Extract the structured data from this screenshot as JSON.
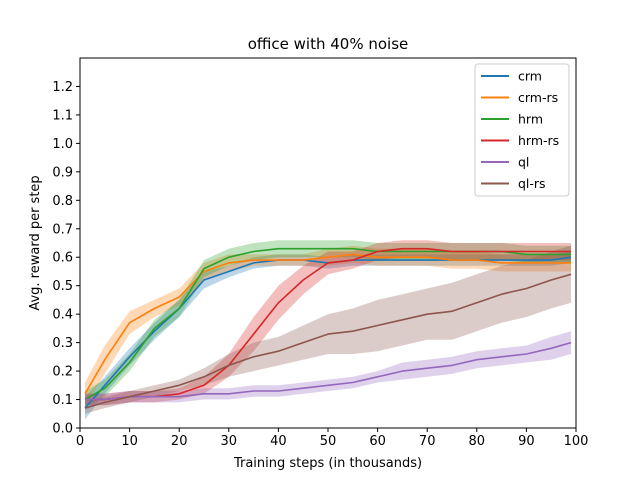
{
  "chart_data": {
    "type": "line",
    "title": "office with 40% noise",
    "xlabel": "Training steps (in thousands)",
    "ylabel": "Avg. reward per step",
    "xlim": [
      0,
      100
    ],
    "ylim": [
      0,
      1.3
    ],
    "xticks": [
      0,
      10,
      20,
      30,
      40,
      50,
      60,
      70,
      80,
      90,
      100
    ],
    "yticks": [
      0.0,
      0.1,
      0.2,
      0.3,
      0.4,
      0.5,
      0.6,
      0.7,
      0.8,
      0.9,
      1.0,
      1.1,
      1.2
    ],
    "xtick_labels": [
      "0",
      "10",
      "20",
      "30",
      "40",
      "50",
      "60",
      "70",
      "80",
      "90",
      "100"
    ],
    "ytick_labels": [
      "0.0",
      "0.1",
      "0.2",
      "0.3",
      "0.4",
      "0.5",
      "0.6",
      "0.7",
      "0.8",
      "0.9",
      "1.0",
      "1.1",
      "1.2"
    ],
    "grid": false,
    "legend_position": "top-right",
    "x": [
      1,
      5,
      10,
      15,
      20,
      25,
      30,
      35,
      40,
      45,
      50,
      55,
      60,
      65,
      70,
      75,
      80,
      85,
      90,
      95,
      99
    ],
    "series": [
      {
        "name": "crm",
        "color": "#1f77b4",
        "values": [
          0.07,
          0.15,
          0.25,
          0.34,
          0.42,
          0.52,
          0.55,
          0.58,
          0.59,
          0.59,
          0.58,
          0.59,
          0.59,
          0.59,
          0.59,
          0.59,
          0.59,
          0.59,
          0.59,
          0.59,
          0.6
        ],
        "band": [
          0.04,
          0.03,
          0.03,
          0.03,
          0.03,
          0.03,
          0.02,
          0.02,
          0.02,
          0.02,
          0.02,
          0.02,
          0.02,
          0.02,
          0.02,
          0.02,
          0.02,
          0.02,
          0.02,
          0.02,
          0.02
        ]
      },
      {
        "name": "crm-rs",
        "color": "#ff7f0e",
        "values": [
          0.12,
          0.24,
          0.37,
          0.42,
          0.46,
          0.55,
          0.58,
          0.59,
          0.59,
          0.59,
          0.6,
          0.61,
          0.6,
          0.6,
          0.6,
          0.59,
          0.59,
          0.58,
          0.58,
          0.58,
          0.58
        ],
        "band": [
          0.04,
          0.05,
          0.04,
          0.03,
          0.03,
          0.03,
          0.03,
          0.02,
          0.02,
          0.02,
          0.03,
          0.03,
          0.03,
          0.03,
          0.03,
          0.03,
          0.03,
          0.03,
          0.03,
          0.03,
          0.03
        ]
      },
      {
        "name": "hrm",
        "color": "#2ca02c",
        "values": [
          0.1,
          0.14,
          0.23,
          0.35,
          0.42,
          0.56,
          0.6,
          0.62,
          0.63,
          0.63,
          0.63,
          0.63,
          0.62,
          0.62,
          0.62,
          0.62,
          0.62,
          0.62,
          0.61,
          0.61,
          0.61
        ],
        "band": [
          0.03,
          0.03,
          0.03,
          0.03,
          0.03,
          0.03,
          0.03,
          0.03,
          0.03,
          0.03,
          0.03,
          0.03,
          0.03,
          0.03,
          0.03,
          0.03,
          0.03,
          0.03,
          0.03,
          0.03,
          0.03
        ]
      },
      {
        "name": "hrm-rs",
        "color": "#d62728",
        "values": [
          0.1,
          0.1,
          0.11,
          0.11,
          0.12,
          0.15,
          0.22,
          0.33,
          0.44,
          0.52,
          0.58,
          0.59,
          0.62,
          0.63,
          0.63,
          0.62,
          0.62,
          0.62,
          0.62,
          0.62,
          0.62
        ],
        "band": [
          0.02,
          0.02,
          0.02,
          0.02,
          0.02,
          0.03,
          0.04,
          0.06,
          0.06,
          0.05,
          0.04,
          0.03,
          0.03,
          0.03,
          0.03,
          0.03,
          0.03,
          0.03,
          0.03,
          0.03,
          0.03
        ]
      },
      {
        "name": "ql",
        "color": "#9467bd",
        "values": [
          0.1,
          0.1,
          0.11,
          0.11,
          0.11,
          0.12,
          0.12,
          0.13,
          0.13,
          0.14,
          0.15,
          0.16,
          0.18,
          0.2,
          0.21,
          0.22,
          0.24,
          0.25,
          0.26,
          0.28,
          0.3
        ],
        "band": [
          0.02,
          0.02,
          0.02,
          0.02,
          0.02,
          0.02,
          0.02,
          0.02,
          0.02,
          0.02,
          0.02,
          0.02,
          0.02,
          0.03,
          0.03,
          0.03,
          0.03,
          0.03,
          0.03,
          0.04,
          0.04
        ]
      },
      {
        "name": "ql-rs",
        "color": "#8c564b",
        "values": [
          0.07,
          0.09,
          0.11,
          0.13,
          0.15,
          0.18,
          0.22,
          0.25,
          0.27,
          0.3,
          0.33,
          0.34,
          0.36,
          0.38,
          0.4,
          0.41,
          0.44,
          0.47,
          0.49,
          0.52,
          0.54
        ],
        "band": [
          0.02,
          0.02,
          0.02,
          0.02,
          0.02,
          0.03,
          0.04,
          0.05,
          0.05,
          0.06,
          0.07,
          0.08,
          0.09,
          0.09,
          0.09,
          0.1,
          0.1,
          0.1,
          0.1,
          0.1,
          0.1
        ]
      }
    ]
  }
}
